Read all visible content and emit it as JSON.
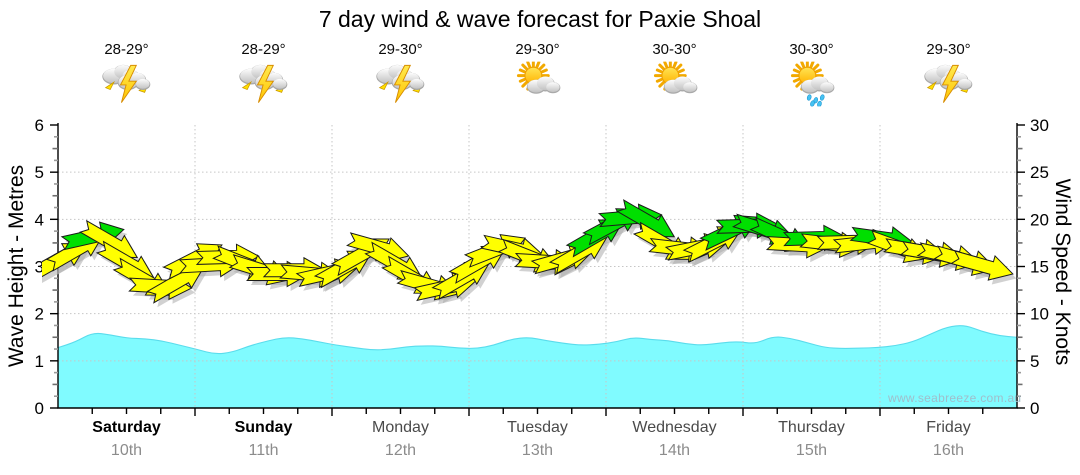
{
  "title": "7 day wind & wave forecast for Paxie Shoal",
  "watermark": "www.seabreeze.com.au",
  "axes": {
    "left": {
      "label": "Wave Height - Metres",
      "range": [
        0,
        6
      ],
      "ticks": [
        0,
        1,
        2,
        3,
        4,
        5,
        6
      ]
    },
    "right": {
      "label": "Wind Speed - Knots",
      "range": [
        0,
        30
      ],
      "ticks": [
        0,
        5,
        10,
        15,
        20,
        25,
        30
      ]
    }
  },
  "days": [
    {
      "name": "Saturday",
      "date": "10th",
      "temp": "28-29°",
      "icon": "storm",
      "weekend": true
    },
    {
      "name": "Sunday",
      "date": "11th",
      "temp": "28-29°",
      "icon": "storm",
      "weekend": true
    },
    {
      "name": "Monday",
      "date": "12th",
      "temp": "29-30°",
      "icon": "storm",
      "weekend": false
    },
    {
      "name": "Tuesday",
      "date": "13th",
      "temp": "29-30°",
      "icon": "suncloud",
      "weekend": false
    },
    {
      "name": "Wednesday",
      "date": "14th",
      "temp": "30-30°",
      "icon": "suncloud",
      "weekend": false
    },
    {
      "name": "Thursday",
      "date": "15th",
      "temp": "30-30°",
      "icon": "suncloudrain",
      "weekend": false
    },
    {
      "name": "Friday",
      "date": "16th",
      "temp": "29-30°",
      "icon": "storm",
      "weekend": false
    }
  ],
  "chart_data": {
    "type": "area",
    "series": [
      {
        "name": "Wave Height (m)",
        "axis": "left",
        "style": "cyan-area"
      },
      {
        "name": "Wind Speed (kn)",
        "axis": "right",
        "style": "wind-arrows"
      }
    ],
    "time_step_hours": 3,
    "points_per_day": 8,
    "green_from_knots": 18,
    "wind_knots": [
      15.8,
      16.8,
      18.2,
      17.6,
      15.4,
      13.6,
      12.9,
      13.4,
      15.8,
      15.2,
      16.0,
      15.3,
      14.6,
      14.2,
      14.6,
      14.2,
      14.3,
      15.0,
      16.3,
      17.0,
      15.3,
      13.8,
      13.0,
      12.8,
      13.8,
      15.5,
      16.8,
      16.9,
      16.0,
      15.5,
      15.8,
      16.5,
      18.3,
      19.5,
      20.2,
      19.8,
      17.4,
      16.9,
      17.0,
      17.6,
      18.8,
      19.3,
      18.9,
      18.2,
      17.3,
      18.0,
      17.4,
      17.6,
      17.5,
      18.0,
      17.0,
      16.7,
      16.4,
      16.1,
      15.6,
      15.1
    ],
    "wave_metres": [
      1.28,
      1.4,
      1.6,
      1.55,
      1.48,
      1.47,
      1.42,
      1.33,
      1.24,
      1.14,
      1.18,
      1.32,
      1.42,
      1.5,
      1.47,
      1.4,
      1.33,
      1.28,
      1.23,
      1.24,
      1.3,
      1.32,
      1.31,
      1.27,
      1.26,
      1.33,
      1.46,
      1.5,
      1.43,
      1.37,
      1.33,
      1.35,
      1.4,
      1.5,
      1.45,
      1.43,
      1.36,
      1.33,
      1.38,
      1.41,
      1.36,
      1.52,
      1.48,
      1.38,
      1.28,
      1.26,
      1.27,
      1.28,
      1.32,
      1.4,
      1.56,
      1.72,
      1.76,
      1.62,
      1.53,
      1.5
    ],
    "ylim_left": [
      0,
      6
    ],
    "ylim_right": [
      0,
      30
    ],
    "grid": "dotted",
    "colors": {
      "wave_fill": "#80FBFF",
      "wave_edge": "#5ADCEC",
      "arrow_yellow": "#FFFF00",
      "arrow_green": "#00DF00",
      "arrow_outline": "#1b1b1b",
      "arrow_shadow": "#ABABAB",
      "grid": "#C6C6C6",
      "axis": "#000000"
    }
  }
}
